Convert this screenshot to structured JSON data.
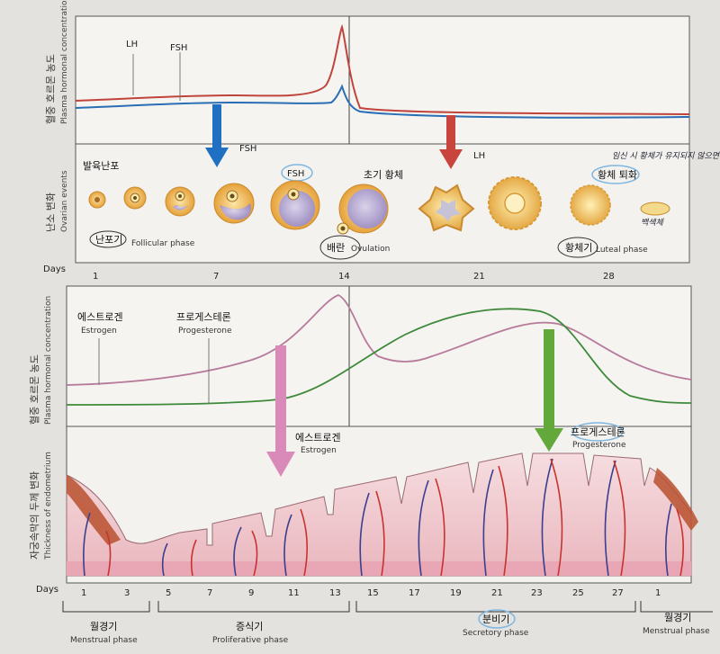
{
  "top_panel": {
    "y_axis_ko": "혈중 호르몬 농도",
    "y_axis_en": "Plasma hormonal concentration",
    "lh_label": "LH",
    "fsh_label": "FSH"
  },
  "ovarian_panel": {
    "y_axis_ko": "난소 변화",
    "y_axis_en": "Ovarian events",
    "fsh_arrow_label": "FSH",
    "lh_arrow_label": "LH",
    "developing_follicle": "발육난포",
    "fsh_note": "FSH",
    "early_corpus_luteum": "초기 황체",
    "corpus_luteum_regression": "황체 퇴화",
    "handwritten_note_1": "임신 시 황체가 유지되지 않으면 퇴화",
    "handwritten_note_2": "백색체",
    "follicular_ko": "난포기",
    "follicular_en": "Follicular phase",
    "ovulation_ko": "배란",
    "ovulation_en": "Ovulation",
    "luteal_ko": "황체기",
    "luteal_en": "Luteal phase"
  },
  "days_top": {
    "label": "Days",
    "ticks": [
      "1",
      "7",
      "14",
      "21",
      "28"
    ]
  },
  "middle_panel": {
    "y_axis_ko": "혈중 호르몬 농도",
    "y_axis_en": "Plasma hormonal concentration",
    "estrogen_ko": "에스트로겐",
    "estrogen_en": "Estrogen",
    "progesterone_ko": "프로게스테론",
    "progesterone_en": "Progesterone"
  },
  "endometrium_panel": {
    "y_axis_ko": "자궁속막의 두께 변화",
    "y_axis_en": "Thickness of endometrium",
    "estrogen_arrow_ko": "에스트로겐",
    "estrogen_arrow_en": "Estrogen",
    "progesterone_arrow_ko": "프로게스테론",
    "progesterone_arrow_en": "Progesterone"
  },
  "days_bottom": {
    "label": "Days",
    "ticks": [
      "1",
      "3",
      "5",
      "7",
      "9",
      "11",
      "13",
      "15",
      "17",
      "19",
      "21",
      "23",
      "25",
      "27",
      "1"
    ]
  },
  "phases": [
    {
      "ko": "월경기",
      "en": "Menstrual phase"
    },
    {
      "ko": "증식기",
      "en": "Proliferative phase"
    },
    {
      "ko": "분비기",
      "en": "Secretory phase"
    },
    {
      "ko": "월경기",
      "en": "Menstrual phase"
    }
  ],
  "colors": {
    "lh": "#c0443c",
    "fsh": "#2a6fb5",
    "estrogen": "#b77a9a",
    "progesterone": "#3f8a3a",
    "fsh_arrow": "#1f6fc2",
    "lh_arrow": "#c8443d",
    "estrogen_arrow": "#d98ab8",
    "progesterone_arrow": "#62a83a",
    "endometrium": "#efc9cc",
    "artery": "#c8332d",
    "vein": "#3a3f8f"
  }
}
